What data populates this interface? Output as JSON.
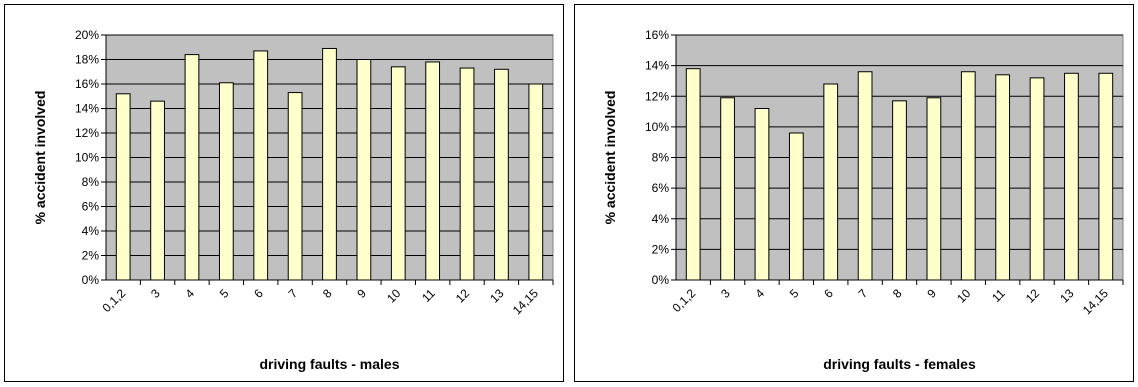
{
  "chart_data": [
    {
      "type": "bar",
      "xlabel": "driving faults - males",
      "ylabel": "% accident involved",
      "categories": [
        "0,1,2",
        "3",
        "4",
        "5",
        "6",
        "7",
        "8",
        "9",
        "10",
        "11",
        "12",
        "13",
        "14,15"
      ],
      "values": [
        15.2,
        14.6,
        18.4,
        16.1,
        18.7,
        15.3,
        18.9,
        18.0,
        17.4,
        17.8,
        17.3,
        17.2,
        16.0
      ],
      "ylim": [
        0,
        20
      ],
      "yticks": [
        "0%",
        "2%",
        "4%",
        "6%",
        "8%",
        "10%",
        "12%",
        "14%",
        "16%",
        "18%",
        "20%"
      ],
      "grid": true,
      "legend": "none",
      "colors": {
        "bar_fill": "#ffffcc",
        "bar_stroke": "#000000",
        "plot_bg": "#c0c0c0"
      }
    },
    {
      "type": "bar",
      "xlabel": "driving faults - females",
      "ylabel": "% accident involved",
      "categories": [
        "0,1,2",
        "3",
        "4",
        "5",
        "6",
        "7",
        "8",
        "9",
        "10",
        "11",
        "12",
        "13",
        "14,15"
      ],
      "values": [
        13.8,
        11.9,
        11.2,
        9.6,
        12.8,
        13.6,
        11.7,
        11.9,
        13.6,
        13.4,
        13.2,
        13.5,
        13.5
      ],
      "ylim": [
        0,
        16
      ],
      "yticks": [
        "0%",
        "2%",
        "4%",
        "6%",
        "8%",
        "10%",
        "12%",
        "14%",
        "16%"
      ],
      "grid": true,
      "legend": "none",
      "colors": {
        "bar_fill": "#ffffcc",
        "bar_stroke": "#000000",
        "plot_bg": "#c0c0c0"
      }
    }
  ]
}
